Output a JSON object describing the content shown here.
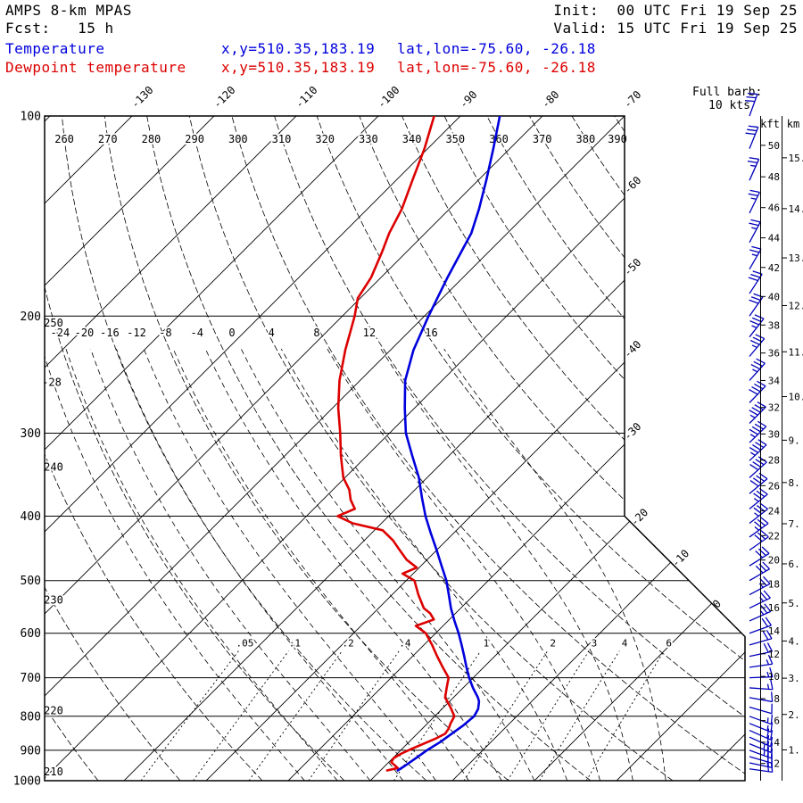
{
  "header": {
    "model": "AMPS 8-km MPAS",
    "fcst": "Fcst:   15 h",
    "init": "Init:  00 UTC Fri 19 Sep 25",
    "valid": "Valid: 15 UTC Fri 19 Sep 25",
    "temp_label": "Temperature",
    "temp_xy": "x,y=510.35,183.19",
    "temp_latlon": "lat,lon=-75.60, -26.18",
    "dewp_label": "Dewpoint temperature",
    "dewp_xy": "x,y=510.35,183.19",
    "dewp_latlon": "lat,lon=-75.60, -26.18",
    "barb_legend_title": "Full barb:",
    "barb_legend_value": "10 kts"
  },
  "colors": {
    "temperature": "#0000dd",
    "dewpoint": "#dd0000",
    "barb": "#0000bb",
    "grid": "#000000"
  },
  "axes": {
    "pressure_ticks": [
      100,
      200,
      300,
      400,
      500,
      600,
      700,
      800,
      900,
      1000
    ],
    "isotherm_top_labels": [
      -130,
      -120,
      -110,
      -100,
      -90,
      -80,
      -70
    ],
    "isotherm_right_labels": [
      -60,
      -50,
      -40,
      -30,
      -20,
      -10,
      0
    ],
    "theta_top_labels": [
      260,
      270,
      280,
      290,
      300,
      310,
      320,
      330,
      340,
      350,
      360,
      370,
      380,
      390
    ],
    "theta_left_labels": [
      250,
      240,
      230,
      220,
      210
    ],
    "moist_adiabat_labels": [
      -28,
      -24,
      -20,
      -16,
      -12,
      -8,
      -4,
      0,
      4,
      8,
      12,
      16
    ],
    "mixing_ratio_values": [
      0.05,
      0.1,
      0.2,
      0.4,
      1,
      2,
      3,
      4,
      6
    ],
    "mixing_ratio_labels": [
      ".05",
      ".1",
      ".2",
      ".4",
      "1",
      "2",
      "3",
      "4",
      "6"
    ],
    "kft_label": "kft",
    "km_label": "km",
    "kft_ticks": [
      50,
      48,
      46,
      44,
      42,
      40,
      38,
      36,
      34,
      32,
      30,
      28,
      26,
      24,
      22,
      20,
      18,
      16,
      14,
      12,
      10,
      8,
      6,
      4,
      2
    ],
    "km_ticks": [
      15,
      14,
      13,
      12,
      11,
      10,
      9,
      8,
      7,
      6,
      5,
      4,
      3,
      2,
      1
    ]
  },
  "chart_data": {
    "type": "skewt_log_p",
    "pressure_ylim_hPa": [
      100,
      1000
    ],
    "background": {
      "isotherm_step_C": 10,
      "isotherm_range_C": [
        -140,
        20
      ],
      "dry_adiabats_K": {
        "min": 210,
        "max": 390,
        "step": 10
      },
      "moist_adiabats_C": [
        -28,
        -24,
        -20,
        -16,
        -12,
        -8,
        -4,
        0,
        4,
        8,
        12,
        16
      ],
      "mixing_ratio_g_kg": [
        0.05,
        0.1,
        0.2,
        0.4,
        1,
        2,
        3,
        4,
        6
      ]
    },
    "temperature_profile": {
      "name": "Temperature",
      "points_p_T": [
        [
          965,
          -17.9
        ],
        [
          950,
          -17.6
        ],
        [
          925,
          -17.2
        ],
        [
          900,
          -16.8
        ],
        [
          875,
          -16.2
        ],
        [
          850,
          -15.8
        ],
        [
          825,
          -15.4
        ],
        [
          800,
          -15.2
        ],
        [
          780,
          -15.6
        ],
        [
          760,
          -16.4
        ],
        [
          750,
          -17.0
        ],
        [
          725,
          -18.8
        ],
        [
          700,
          -20.5
        ],
        [
          675,
          -22.1
        ],
        [
          650,
          -23.7
        ],
        [
          625,
          -25.4
        ],
        [
          600,
          -27.2
        ],
        [
          575,
          -29.2
        ],
        [
          550,
          -31.2
        ],
        [
          525,
          -33.1
        ],
        [
          500,
          -35.1
        ],
        [
          475,
          -37.5
        ],
        [
          450,
          -40.0
        ],
        [
          425,
          -42.7
        ],
        [
          400,
          -45.5
        ],
        [
          375,
          -48.2
        ],
        [
          350,
          -51.0
        ],
        [
          325,
          -54.4
        ],
        [
          300,
          -58.0
        ],
        [
          275,
          -61.2
        ],
        [
          250,
          -64.5
        ],
        [
          225,
          -67.2
        ],
        [
          200,
          -69.5
        ],
        [
          175,
          -71.9
        ],
        [
          150,
          -74.4
        ],
        [
          138,
          -76.4
        ],
        [
          125,
          -79.0
        ],
        [
          112,
          -82.0
        ],
        [
          100,
          -85.2
        ]
      ]
    },
    "dewpoint_profile": {
      "name": "Dewpoint temperature",
      "points_p_T": [
        [
          965,
          -19.2
        ],
        [
          957,
          -18.2
        ],
        [
          948,
          -18.9
        ],
        [
          938,
          -19.7
        ],
        [
          925,
          -19.9
        ],
        [
          910,
          -19.5
        ],
        [
          895,
          -18.8
        ],
        [
          880,
          -18.0
        ],
        [
          865,
          -17.2
        ],
        [
          850,
          -16.6
        ],
        [
          835,
          -16.8
        ],
        [
          820,
          -17.2
        ],
        [
          800,
          -17.6
        ],
        [
          775,
          -19.2
        ],
        [
          750,
          -21.0
        ],
        [
          725,
          -22.0
        ],
        [
          700,
          -23.0
        ],
        [
          675,
          -25.0
        ],
        [
          650,
          -27.0
        ],
        [
          625,
          -29.0
        ],
        [
          600,
          -31.2
        ],
        [
          585,
          -33.3
        ],
        [
          572,
          -31.9
        ],
        [
          560,
          -33.1
        ],
        [
          550,
          -34.5
        ],
        [
          525,
          -36.8
        ],
        [
          500,
          -39.0
        ],
        [
          488,
          -41.3
        ],
        [
          478,
          -40.3
        ],
        [
          465,
          -42.5
        ],
        [
          450,
          -44.5
        ],
        [
          435,
          -46.5
        ],
        [
          420,
          -49.0
        ],
        [
          410,
          -53.5
        ],
        [
          400,
          -56.2
        ],
        [
          390,
          -55.0
        ],
        [
          378,
          -56.6
        ],
        [
          365,
          -58.0
        ],
        [
          350,
          -60.2
        ],
        [
          325,
          -63.1
        ],
        [
          300,
          -66.0
        ],
        [
          275,
          -69.3
        ],
        [
          250,
          -72.5
        ],
        [
          225,
          -75.5
        ],
        [
          200,
          -78.5
        ],
        [
          188,
          -80.3
        ],
        [
          175,
          -81.2
        ],
        [
          160,
          -83.0
        ],
        [
          150,
          -84.4
        ],
        [
          138,
          -85.8
        ],
        [
          125,
          -88.0
        ],
        [
          112,
          -90.4
        ],
        [
          100,
          -93.2
        ]
      ]
    },
    "wind_barbs_format": "[pressure_hPa, speed_kts, direction_deg_from]",
    "wind_barbs": [
      [
        100,
        30,
        20
      ],
      [
        112,
        30,
        22
      ],
      [
        125,
        25,
        24
      ],
      [
        140,
        25,
        26
      ],
      [
        155,
        25,
        28
      ],
      [
        170,
        25,
        30
      ],
      [
        185,
        30,
        33
      ],
      [
        200,
        30,
        35
      ],
      [
        215,
        35,
        38
      ],
      [
        230,
        35,
        40
      ],
      [
        250,
        35,
        42
      ],
      [
        270,
        40,
        44
      ],
      [
        290,
        45,
        45
      ],
      [
        310,
        45,
        46
      ],
      [
        330,
        45,
        47
      ],
      [
        350,
        40,
        48
      ],
      [
        370,
        40,
        50
      ],
      [
        390,
        35,
        51
      ],
      [
        410,
        35,
        52
      ],
      [
        430,
        35,
        54
      ],
      [
        450,
        30,
        55
      ],
      [
        475,
        30,
        58
      ],
      [
        500,
        30,
        60
      ],
      [
        525,
        25,
        62
      ],
      [
        550,
        25,
        64
      ],
      [
        575,
        25,
        66
      ],
      [
        600,
        20,
        70
      ],
      [
        625,
        20,
        74
      ],
      [
        650,
        20,
        78
      ],
      [
        675,
        15,
        82
      ],
      [
        700,
        15,
        88
      ],
      [
        725,
        15,
        94
      ],
      [
        750,
        10,
        100
      ],
      [
        775,
        10,
        106
      ],
      [
        800,
        15,
        110
      ],
      [
        820,
        15,
        112
      ],
      [
        840,
        20,
        114
      ],
      [
        860,
        20,
        114
      ],
      [
        880,
        25,
        112
      ],
      [
        900,
        25,
        110
      ],
      [
        920,
        20,
        106
      ],
      [
        940,
        20,
        102
      ],
      [
        960,
        20,
        98
      ]
    ]
  }
}
